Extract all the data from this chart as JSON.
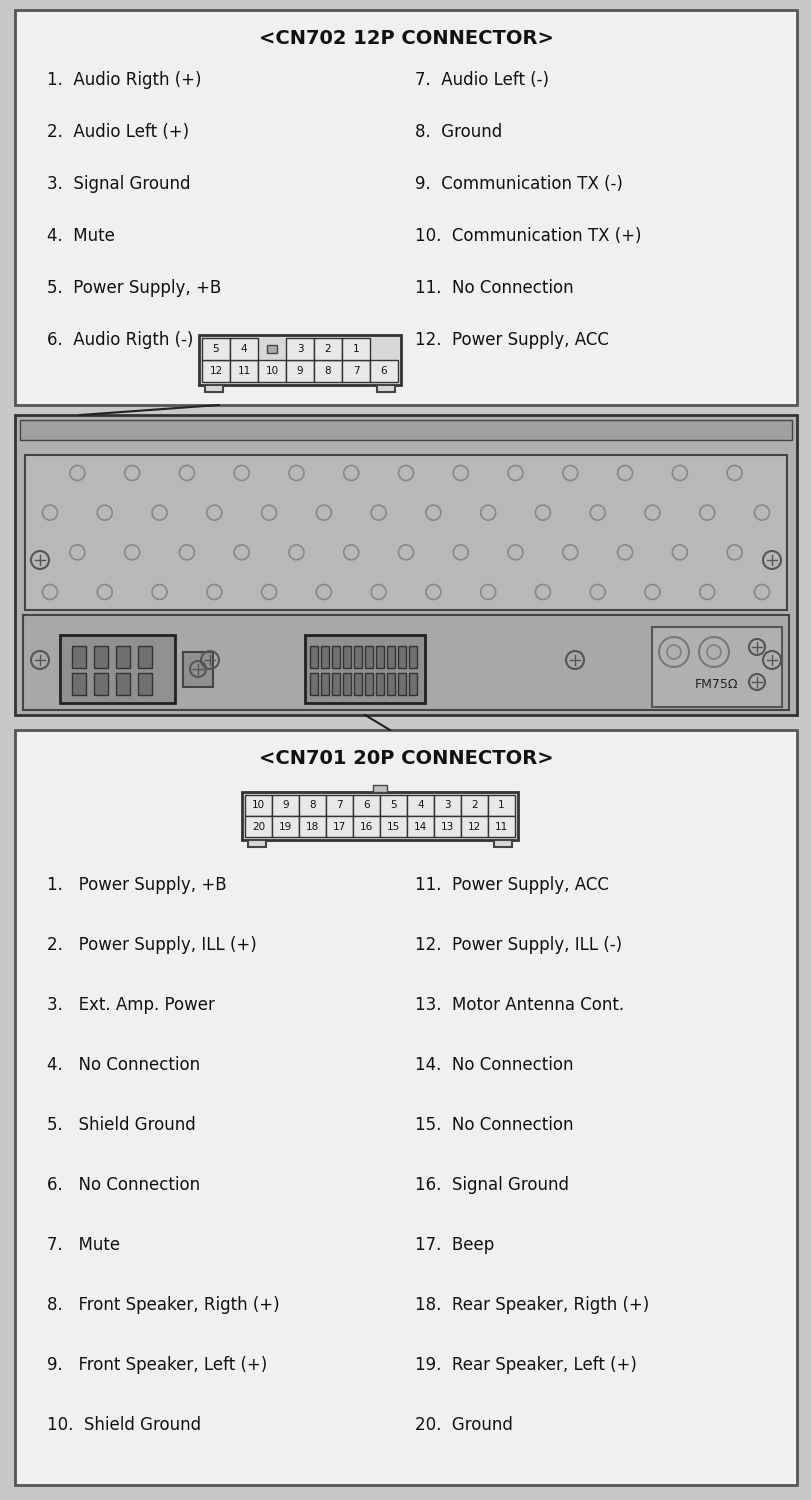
{
  "bg_color": "#c8c8c8",
  "box_color": "#ffffff",
  "box_edge_color": "#333333",
  "text_color": "#111111",
  "cn702_title": "<CN702 12P CONNECTOR>",
  "cn702_pins_left": [
    "1.  Audio Rigth (+)",
    "2.  Audio Left (+)",
    "3.  Signal Ground",
    "4.  Mute",
    "5.  Power Supply, +B",
    "6.  Audio Rigth (-)"
  ],
  "cn702_pins_right": [
    "7.  Audio Left (-)",
    "8.  Ground",
    "9.  Communication TX (-)",
    "10.  Communication TX (+)",
    "11.  No Connection",
    "12.  Power Supply, ACC"
  ],
  "cn702_row1": [
    "5",
    "4",
    "",
    "3",
    "2",
    "1"
  ],
  "cn702_row2": [
    "12",
    "11",
    "10",
    "9",
    "8",
    "7",
    "6"
  ],
  "cn701_title": "<CN701 20P CONNECTOR>",
  "cn701_row1": [
    "10",
    "9",
    "8",
    "7",
    "6",
    "5",
    "4",
    "3",
    "2",
    "1"
  ],
  "cn701_row2": [
    "20",
    "19",
    "18",
    "17",
    "16",
    "15",
    "14",
    "13",
    "12",
    "11"
  ],
  "cn701_pins_left": [
    "1.   Power Supply, +B",
    "2.   Power Supply, ILL (+)",
    "3.   Ext. Amp. Power",
    "4.   No Connection",
    "5.   Shield Ground",
    "6.   No Connection",
    "7.   Mute",
    "8.   Front Speaker, Rigth (+)",
    "9.   Front Speaker, Left (+)",
    "10.  Shield Ground"
  ],
  "cn701_pins_right": [
    "11.  Power Supply, ACC",
    "12.  Power Supply, ILL (-)",
    "13.  Motor Antenna Cont.",
    "14.  No Connection",
    "15.  No Connection",
    "16.  Signal Ground",
    "17.  Beep",
    "18.  Rear Speaker, Rigth (+)",
    "19.  Rear Speaker, Left (+)",
    "20.  Ground"
  ]
}
